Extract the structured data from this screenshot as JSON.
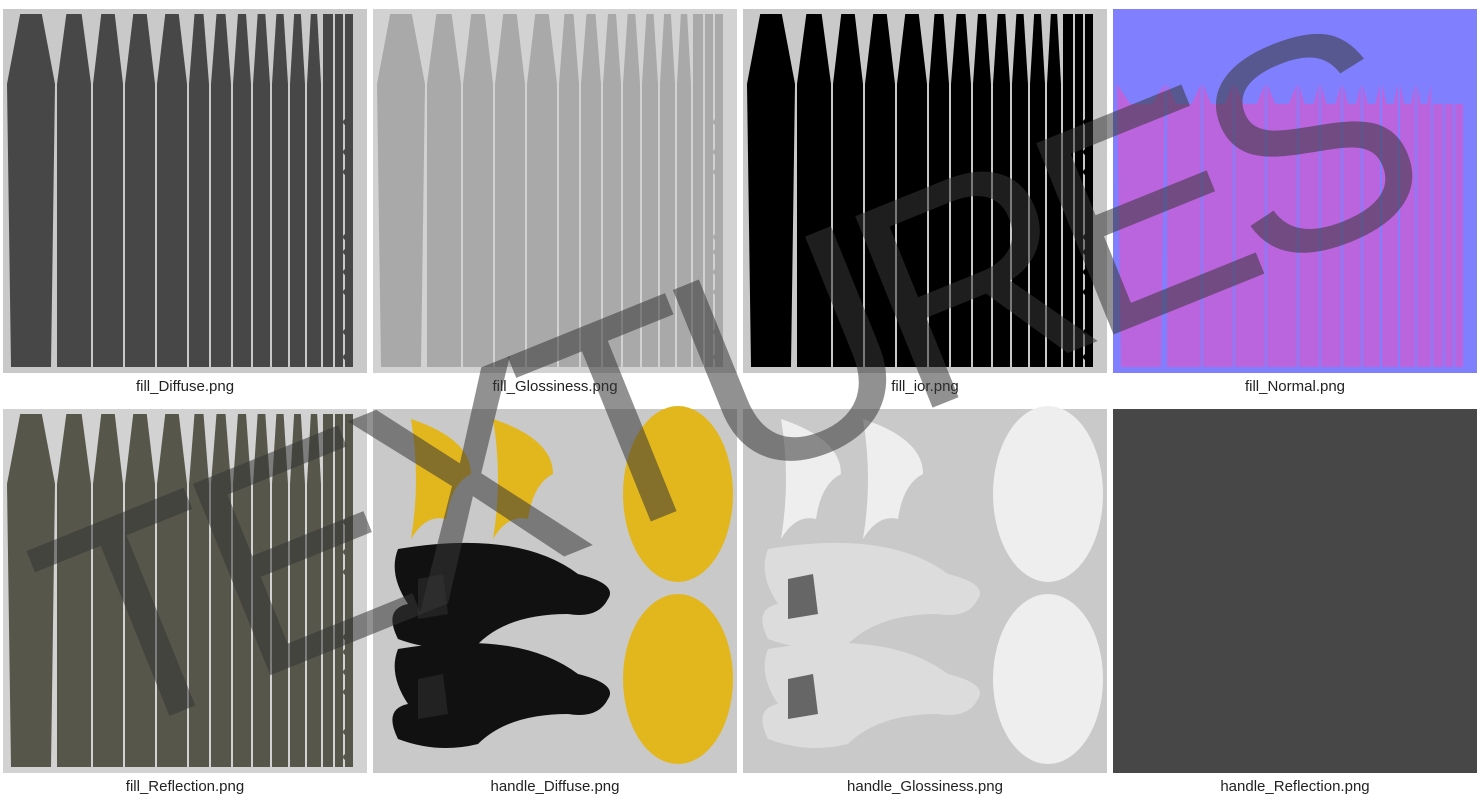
{
  "tiles": [
    {
      "caption": "fill_Diffuse.png"
    },
    {
      "caption": "fill_Glossiness.png"
    },
    {
      "caption": "fill_ior.png"
    },
    {
      "caption": "fill_Normal.png"
    },
    {
      "caption": "fill_Reflection.png"
    },
    {
      "caption": "handle_Diffuse.png"
    },
    {
      "caption": "handle_Glossiness.png"
    },
    {
      "caption": "handle_Reflection.png"
    }
  ],
  "watermark": "TEXTURES"
}
